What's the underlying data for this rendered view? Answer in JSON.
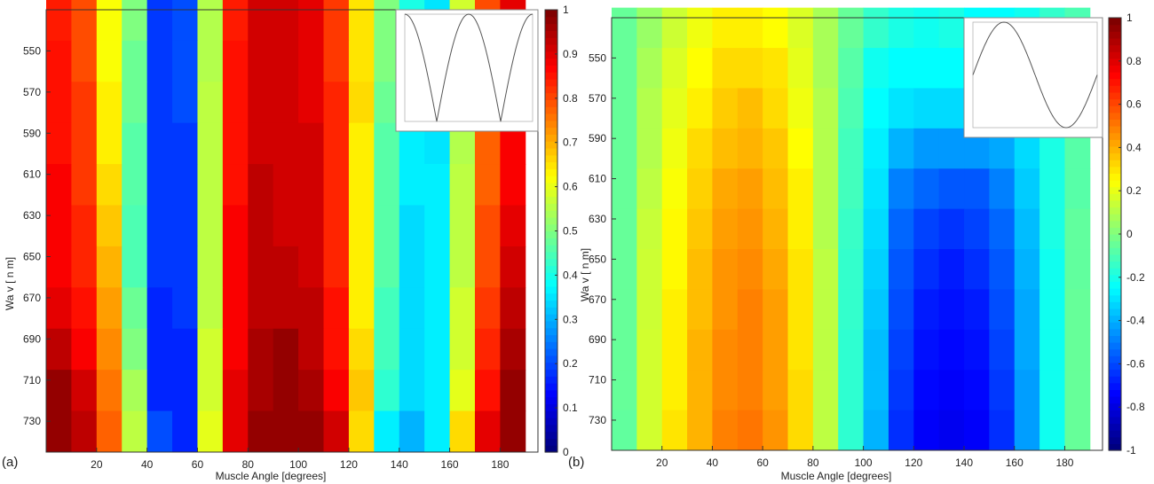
{
  "figure": {
    "panel_labels": [
      "(a)",
      "(b)"
    ]
  },
  "chart_data": [
    {
      "type": "heatmap",
      "panel": "(a)",
      "xlabel": "Muscle Angle [degrees]",
      "ylabel": "Wa v  [ n m]",
      "xticks": [
        20,
        40,
        60,
        80,
        100,
        120,
        140,
        160,
        180
      ],
      "yticks": [
        550,
        570,
        590,
        610,
        630,
        650,
        670,
        690,
        710,
        730
      ],
      "xlim": [
        0,
        195
      ],
      "ylim": [
        530,
        745
      ],
      "x": [
        5,
        15,
        25,
        35,
        45,
        55,
        65,
        75,
        85,
        95,
        105,
        115,
        125,
        135,
        145,
        155,
        165,
        175,
        185
      ],
      "y": [
        535,
        555,
        575,
        595,
        615,
        635,
        655,
        675,
        695,
        715,
        735
      ],
      "values": [
        [
          0.85,
          0.8,
          0.62,
          0.5,
          0.18,
          0.2,
          0.55,
          0.85,
          0.92,
          0.92,
          0.9,
          0.82,
          0.65,
          0.5,
          0.4,
          0.35,
          0.58,
          0.8,
          0.9
        ],
        [
          0.86,
          0.8,
          0.62,
          0.48,
          0.18,
          0.2,
          0.55,
          0.86,
          0.92,
          0.92,
          0.9,
          0.82,
          0.65,
          0.5,
          0.38,
          0.35,
          0.58,
          0.8,
          0.9
        ],
        [
          0.86,
          0.82,
          0.64,
          0.48,
          0.18,
          0.2,
          0.56,
          0.86,
          0.92,
          0.92,
          0.9,
          0.84,
          0.66,
          0.48,
          0.38,
          0.36,
          0.56,
          0.8,
          0.9
        ],
        [
          0.86,
          0.82,
          0.64,
          0.46,
          0.18,
          0.18,
          0.56,
          0.86,
          0.92,
          0.92,
          0.92,
          0.84,
          0.64,
          0.46,
          0.36,
          0.35,
          0.55,
          0.78,
          0.88
        ],
        [
          0.88,
          0.82,
          0.66,
          0.46,
          0.18,
          0.18,
          0.56,
          0.86,
          0.94,
          0.92,
          0.92,
          0.84,
          0.64,
          0.46,
          0.36,
          0.36,
          0.56,
          0.78,
          0.88
        ],
        [
          0.88,
          0.84,
          0.68,
          0.45,
          0.18,
          0.18,
          0.56,
          0.88,
          0.94,
          0.92,
          0.92,
          0.84,
          0.64,
          0.46,
          0.34,
          0.36,
          0.56,
          0.8,
          0.9
        ],
        [
          0.88,
          0.84,
          0.7,
          0.45,
          0.18,
          0.18,
          0.56,
          0.88,
          0.94,
          0.94,
          0.92,
          0.84,
          0.64,
          0.46,
          0.34,
          0.36,
          0.56,
          0.8,
          0.92
        ],
        [
          0.9,
          0.86,
          0.72,
          0.48,
          0.16,
          0.18,
          0.56,
          0.88,
          0.94,
          0.94,
          0.94,
          0.86,
          0.64,
          0.44,
          0.34,
          0.36,
          0.58,
          0.82,
          0.94
        ],
        [
          0.94,
          0.88,
          0.74,
          0.5,
          0.16,
          0.16,
          0.58,
          0.88,
          0.96,
          0.98,
          0.94,
          0.86,
          0.66,
          0.44,
          0.34,
          0.36,
          0.58,
          0.84,
          0.96
        ],
        [
          0.98,
          0.92,
          0.76,
          0.54,
          0.16,
          0.16,
          0.58,
          0.9,
          0.96,
          0.98,
          0.96,
          0.88,
          0.68,
          0.42,
          0.34,
          0.36,
          0.6,
          0.86,
          0.98
        ],
        [
          0.98,
          0.94,
          0.78,
          0.56,
          0.2,
          0.16,
          0.6,
          0.9,
          0.98,
          0.98,
          0.98,
          0.92,
          0.66,
          0.36,
          0.3,
          0.36,
          0.66,
          0.9,
          0.98
        ]
      ],
      "colorbar": {
        "min": 0,
        "max": 1,
        "ticks": [
          "0",
          "0.1",
          "0.2",
          "0.3",
          "0.4",
          "0.5",
          "0.6",
          "0.7",
          "0.8",
          "0.9",
          "1"
        ]
      },
      "inset": {
        "type": "line",
        "function": "abs(cos(x))"
      }
    },
    {
      "type": "heatmap",
      "panel": "(b)",
      "xlabel": "Muscle Angle [degrees]",
      "ylabel": "Wa v  [ n m]",
      "xticks": [
        20,
        40,
        60,
        80,
        100,
        120,
        140,
        160,
        180
      ],
      "yticks": [
        550,
        570,
        590,
        610,
        630,
        650,
        670,
        690,
        710,
        730
      ],
      "xlim": [
        0,
        195
      ],
      "ylim": [
        530,
        745
      ],
      "x": [
        5,
        15,
        25,
        35,
        45,
        55,
        65,
        75,
        85,
        95,
        105,
        115,
        125,
        135,
        145,
        155,
        165,
        175,
        185
      ],
      "y": [
        535,
        555,
        575,
        595,
        615,
        635,
        655,
        675,
        695,
        715,
        735
      ],
      "values": [
        [
          -0.05,
          0.05,
          0.15,
          0.22,
          0.28,
          0.28,
          0.25,
          0.18,
          0.08,
          -0.05,
          -0.15,
          -0.2,
          -0.22,
          -0.2,
          -0.25,
          -0.25,
          -0.22,
          -0.15,
          -0.1
        ],
        [
          -0.05,
          0.08,
          0.18,
          0.25,
          0.32,
          0.32,
          0.3,
          0.2,
          0.08,
          -0.08,
          -0.22,
          -0.25,
          -0.25,
          -0.25,
          -0.28,
          -0.28,
          -0.25,
          -0.18,
          -0.08
        ],
        [
          -0.05,
          0.1,
          0.2,
          0.28,
          0.35,
          0.38,
          0.32,
          0.22,
          0.1,
          -0.1,
          -0.25,
          -0.3,
          -0.32,
          -0.32,
          -0.35,
          -0.32,
          -0.28,
          -0.18,
          -0.08
        ],
        [
          -0.05,
          0.1,
          0.22,
          0.32,
          0.38,
          0.4,
          0.36,
          0.25,
          0.1,
          -0.12,
          -0.28,
          -0.4,
          -0.45,
          -0.45,
          -0.45,
          -0.42,
          -0.32,
          -0.2,
          -0.08
        ],
        [
          -0.05,
          0.12,
          0.24,
          0.34,
          0.42,
          0.44,
          0.38,
          0.28,
          0.1,
          -0.12,
          -0.3,
          -0.5,
          -0.55,
          -0.58,
          -0.58,
          -0.5,
          -0.35,
          -0.2,
          -0.08
        ],
        [
          -0.05,
          0.14,
          0.26,
          0.36,
          0.44,
          0.46,
          0.4,
          0.28,
          0.1,
          -0.14,
          -0.32,
          -0.55,
          -0.62,
          -0.65,
          -0.62,
          -0.55,
          -0.38,
          -0.2,
          -0.06
        ],
        [
          -0.05,
          0.15,
          0.26,
          0.38,
          0.46,
          0.48,
          0.42,
          0.3,
          0.12,
          -0.15,
          -0.34,
          -0.58,
          -0.66,
          -0.7,
          -0.66,
          -0.58,
          -0.4,
          -0.22,
          -0.06
        ],
        [
          -0.05,
          0.15,
          0.28,
          0.38,
          0.46,
          0.5,
          0.44,
          0.3,
          0.12,
          -0.15,
          -0.36,
          -0.6,
          -0.7,
          -0.72,
          -0.7,
          -0.6,
          -0.42,
          -0.22,
          -0.05
        ],
        [
          -0.05,
          0.16,
          0.28,
          0.4,
          0.48,
          0.5,
          0.44,
          0.3,
          0.12,
          -0.16,
          -0.38,
          -0.62,
          -0.72,
          -0.74,
          -0.72,
          -0.62,
          -0.42,
          -0.22,
          -0.05
        ],
        [
          -0.05,
          0.16,
          0.28,
          0.4,
          0.48,
          0.5,
          0.44,
          0.32,
          0.12,
          -0.16,
          -0.38,
          -0.64,
          -0.74,
          -0.76,
          -0.74,
          -0.64,
          -0.44,
          -0.22,
          -0.05
        ],
        [
          -0.06,
          0.16,
          0.3,
          0.4,
          0.5,
          0.52,
          0.46,
          0.32,
          0.12,
          -0.16,
          -0.4,
          -0.66,
          -0.76,
          -0.78,
          -0.76,
          -0.66,
          -0.44,
          -0.22,
          -0.05
        ]
      ],
      "colorbar": {
        "min": -1,
        "max": 1,
        "ticks": [
          "-1",
          "-0.8",
          "-0.6",
          "-0.4",
          "-0.2",
          "0",
          "0.2",
          "0.4",
          "0.6",
          "0.8",
          "1"
        ]
      },
      "inset": {
        "type": "line",
        "function": "sin(x)"
      }
    }
  ]
}
